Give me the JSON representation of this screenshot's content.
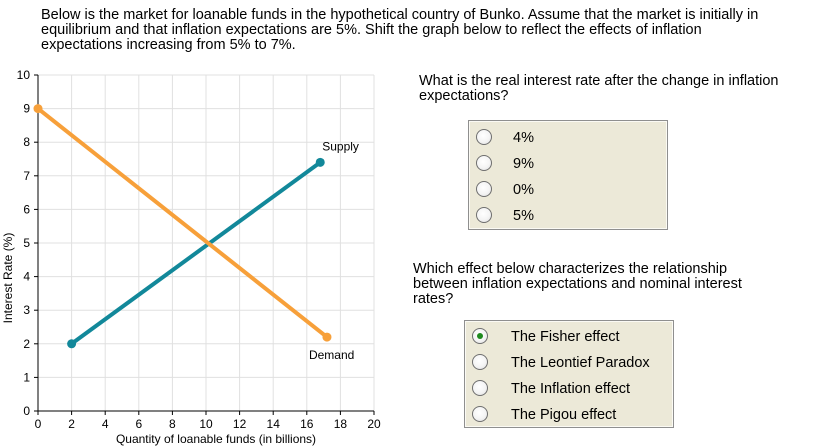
{
  "intro_text": "Below is the market for loanable funds in the hypothetical country of Bunko. Assume that the market is initially in equilibrium and that inflation expectations are 5%. Shift the graph below to reflect the effects of inflation expectations increasing from 5% to 7%.",
  "question1": {
    "text": "What is the real interest rate after the change in inflation expectations?",
    "options": [
      "4%",
      "9%",
      "0%",
      "5%"
    ],
    "selected_index": null
  },
  "question2": {
    "text": "Which effect below characterizes the relationship between inflation expectations and nominal interest rates?",
    "options": [
      "The Fisher effect",
      "The Leontief Paradox",
      "The Inflation effect",
      "The Pigou effect"
    ],
    "selected_index": 0
  },
  "colors": {
    "supply": "#12889a",
    "demand": "#f7a03a",
    "selected_dot": "#1f8a1f",
    "box_bg": "#ece9d8"
  },
  "chart_data": {
    "type": "line",
    "xlabel": "Quantity of loanable funds (in billions)",
    "ylabel": "Interest Rate (%)",
    "xlim": [
      0,
      20
    ],
    "ylim": [
      0,
      10
    ],
    "xticks": [
      "0",
      "2",
      "4",
      "6",
      "8",
      "10",
      "12",
      "14",
      "16",
      "18",
      "20"
    ],
    "yticks": [
      "0",
      "1",
      "2",
      "3",
      "4",
      "5",
      "6",
      "7",
      "8",
      "9",
      "10"
    ],
    "grid": true,
    "series": [
      {
        "name": "Supply",
        "points": [
          [
            2,
            2
          ],
          [
            16.8,
            7.4
          ]
        ]
      },
      {
        "name": "Demand",
        "points": [
          [
            0,
            9
          ],
          [
            17.2,
            2.2
          ]
        ]
      }
    ]
  }
}
